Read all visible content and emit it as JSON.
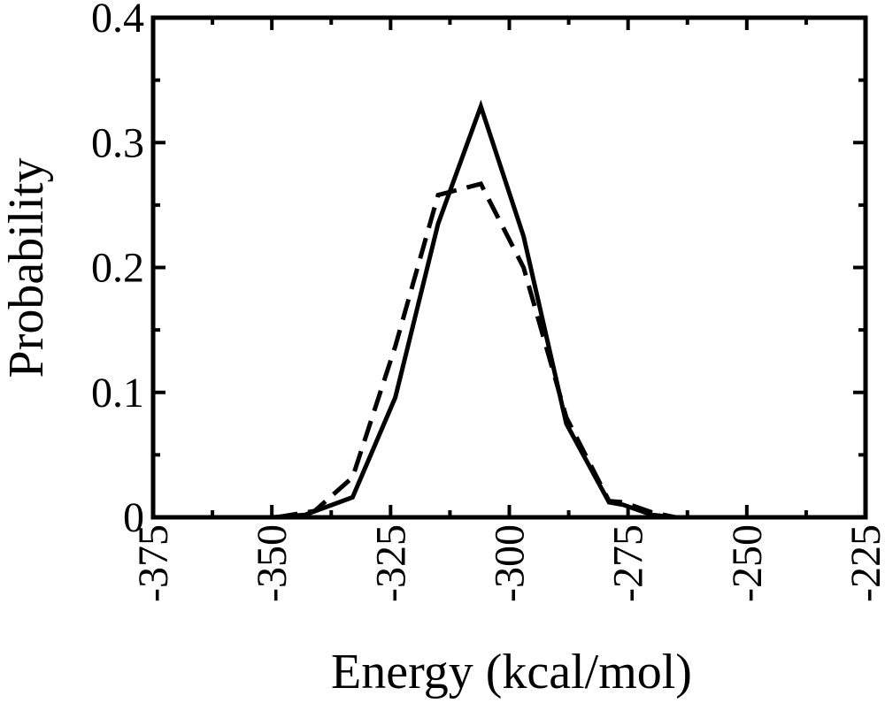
{
  "chart_data": {
    "type": "line",
    "xlabel": "Energy (kcal/mol)",
    "ylabel": "Probability",
    "xlim": [
      -375,
      -225
    ],
    "ylim": [
      0,
      0.4
    ],
    "xticks": [
      -375,
      -350,
      -325,
      -300,
      -275,
      -250,
      -225
    ],
    "yticks": [
      0,
      0.1,
      0.2,
      0.3,
      0.4
    ],
    "x_tick_labels": [
      "-375",
      "-350",
      "-325",
      "-300",
      "-275",
      "-250",
      "-225"
    ],
    "y_tick_labels": [
      "0",
      "0.1",
      "0.2",
      "0.3",
      "0.4"
    ],
    "grid": false,
    "legend": false,
    "series": [
      {
        "style": "solid",
        "color": "#000000",
        "x": [
          -350,
          -343,
          -333,
          -324,
          -315,
          -306,
          -297,
          -288,
          -279,
          -276,
          -270,
          -265
        ],
        "y": [
          0,
          0.002,
          0.016,
          0.096,
          0.235,
          0.329,
          0.225,
          0.075,
          0.012,
          0.01,
          0.002,
          0
        ]
      },
      {
        "style": "dashed",
        "color": "#000000",
        "x": [
          -349,
          -341,
          -333,
          -324,
          -315,
          -306,
          -297,
          -288,
          -279,
          -276,
          -270,
          -265
        ],
        "y": [
          0,
          0.005,
          0.032,
          0.137,
          0.258,
          0.267,
          0.2,
          0.08,
          0.013,
          0.012,
          0.004,
          0
        ]
      }
    ]
  }
}
